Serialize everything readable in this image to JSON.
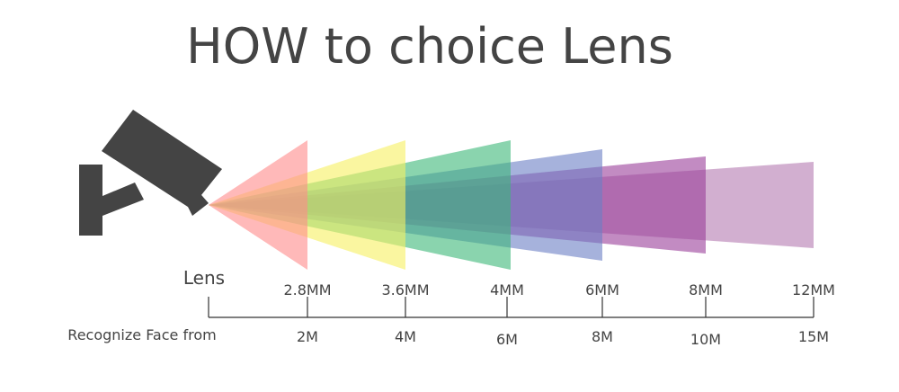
{
  "header": {
    "title": "HOW to  choice Lens"
  },
  "axis": {
    "lens_label": "Lens",
    "distance_label": "Recognize Face from"
  },
  "lenses": [
    {
      "focal": "2.8MM",
      "distance": "2M"
    },
    {
      "focal": "3.6MM",
      "distance": "4M"
    },
    {
      "focal": "4MM",
      "distance": "6M"
    },
    {
      "focal": "6MM",
      "distance": "8M"
    },
    {
      "focal": "8MM",
      "distance": "10M"
    },
    {
      "focal": "12MM",
      "distance": "15M"
    }
  ]
}
